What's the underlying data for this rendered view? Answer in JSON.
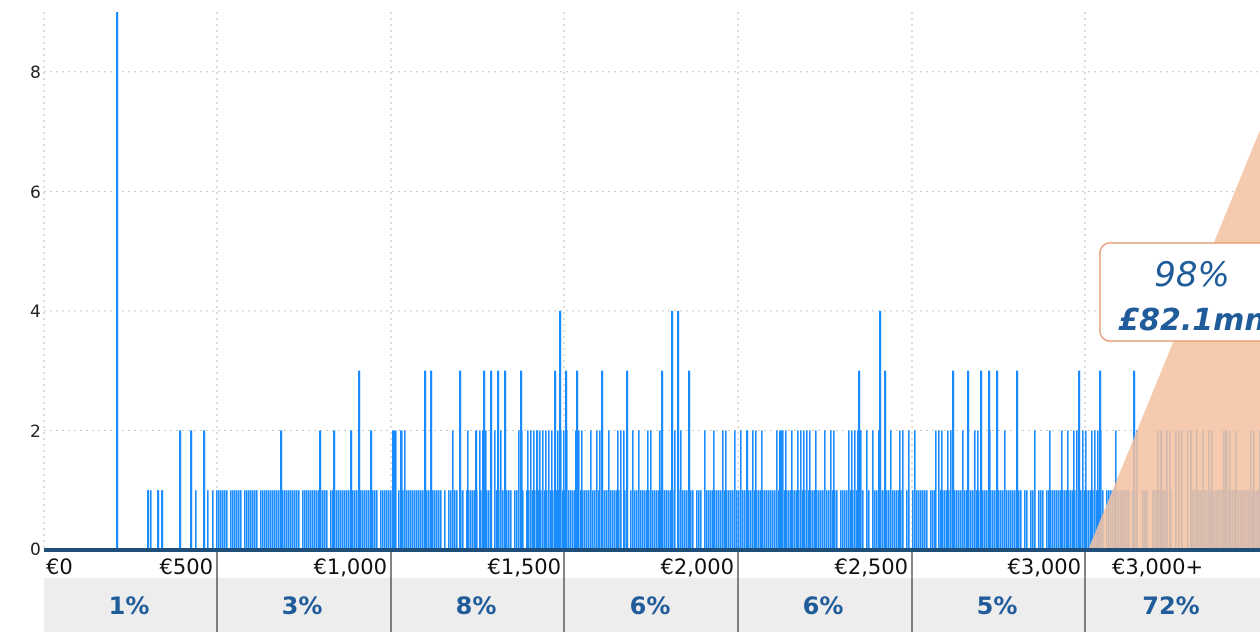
{
  "chart_data": {
    "type": "bar",
    "ylim": [
      0,
      9
    ],
    "yticks": [
      "0",
      "2",
      "4",
      "6",
      "8"
    ],
    "grid": true,
    "bar_color": "#1a8cff",
    "bins": [
      "€0",
      "€500",
      "€1,000",
      "€1,500",
      "€2,000",
      "€2,500",
      "€3,000",
      "€3,000+"
    ],
    "bin_shares": [
      "1%",
      "3%",
      "8%",
      "6%",
      "6%",
      "5%",
      "72%"
    ],
    "callout": {
      "share": "98%",
      "amount": "£82.1mn",
      "color": "#f5c1a0"
    },
    "spikes": [
      {
        "x": 116,
        "v": 9
      },
      {
        "x": 147,
        "v": 1
      },
      {
        "x": 157,
        "v": 1
      },
      {
        "x": 161,
        "v": 1
      },
      {
        "x": 179,
        "v": 2
      },
      {
        "x": 190,
        "v": 2
      },
      {
        "x": 203,
        "v": 2
      },
      {
        "x": 280,
        "v": 2
      },
      {
        "x": 319,
        "v": 2
      },
      {
        "x": 333,
        "v": 2
      },
      {
        "x": 350,
        "v": 2
      },
      {
        "x": 358,
        "v": 3
      },
      {
        "x": 370,
        "v": 2
      },
      {
        "x": 393,
        "v": 2
      },
      {
        "x": 400,
        "v": 2
      },
      {
        "x": 424,
        "v": 3
      },
      {
        "x": 430,
        "v": 3
      },
      {
        "x": 459,
        "v": 3
      },
      {
        "x": 475,
        "v": 2
      },
      {
        "x": 483,
        "v": 3
      },
      {
        "x": 490,
        "v": 3
      },
      {
        "x": 497,
        "v": 3
      },
      {
        "x": 504,
        "v": 3
      },
      {
        "x": 520,
        "v": 3
      },
      {
        "x": 536,
        "v": 2
      },
      {
        "x": 554,
        "v": 3
      },
      {
        "x": 559,
        "v": 4
      },
      {
        "x": 565,
        "v": 3
      },
      {
        "x": 576,
        "v": 3
      },
      {
        "x": 601,
        "v": 3
      },
      {
        "x": 626,
        "v": 3
      },
      {
        "x": 661,
        "v": 3
      },
      {
        "x": 671,
        "v": 4
      },
      {
        "x": 677,
        "v": 4
      },
      {
        "x": 688,
        "v": 3
      },
      {
        "x": 746,
        "v": 2
      },
      {
        "x": 780,
        "v": 2
      },
      {
        "x": 858,
        "v": 3
      },
      {
        "x": 879,
        "v": 4
      },
      {
        "x": 884,
        "v": 3
      },
      {
        "x": 952,
        "v": 3
      },
      {
        "x": 967,
        "v": 3
      },
      {
        "x": 980,
        "v": 3
      },
      {
        "x": 988,
        "v": 3
      },
      {
        "x": 996,
        "v": 3
      },
      {
        "x": 1016,
        "v": 3
      },
      {
        "x": 1078,
        "v": 3
      },
      {
        "x": 1099,
        "v": 3
      },
      {
        "x": 1133,
        "v": 3
      },
      {
        "x": 1160,
        "v": 2
      },
      {
        "x": 1190,
        "v": 2
      },
      {
        "x": 1225,
        "v": 2
      }
    ]
  }
}
